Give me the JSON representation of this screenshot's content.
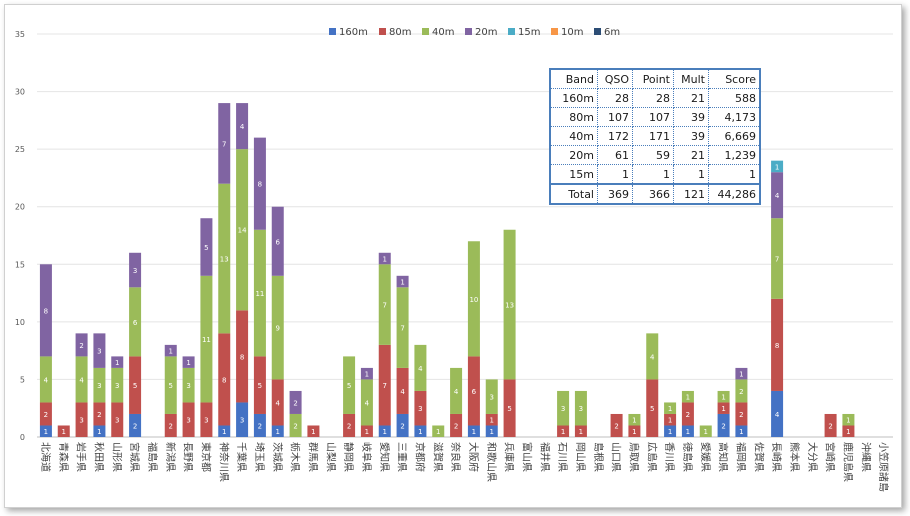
{
  "chart_data": {
    "type": "bar",
    "stacked": true,
    "ylim": [
      0,
      35
    ],
    "yticks": [
      0,
      5,
      10,
      15,
      20,
      25,
      30,
      35
    ],
    "grid": true,
    "legend_position": "top",
    "categories": [
      "北海道",
      "青森県",
      "岩手県",
      "秋田県",
      "山形県",
      "宮城県",
      "福島県",
      "新潟県",
      "長野県",
      "東京都",
      "神奈川県",
      "千葉県",
      "埼玉県",
      "茨城県",
      "栃木県",
      "群馬県",
      "山梨県",
      "静岡県",
      "岐阜県",
      "愛知県",
      "三重県",
      "京都府",
      "滋賀県",
      "奈良県",
      "大阪府",
      "和歌山県",
      "兵庫県",
      "富山県",
      "福井県",
      "石川県",
      "岡山県",
      "島根県",
      "山口県",
      "鳥取県",
      "広島県",
      "香川県",
      "徳島県",
      "愛媛県",
      "高知県",
      "福岡県",
      "佐賀県",
      "長崎県",
      "熊本県",
      "大分県",
      "宮崎県",
      "鹿児島県",
      "沖縄県",
      "小笠原諸島"
    ],
    "series": [
      {
        "name": "160m",
        "color": "#4472c4",
        "values": [
          1,
          0,
          0,
          1,
          0,
          2,
          0,
          0,
          0,
          0,
          1,
          3,
          2,
          1,
          0,
          0,
          0,
          0,
          0,
          1,
          2,
          1,
          0,
          0,
          1,
          1,
          0,
          0,
          0,
          0,
          0,
          0,
          0,
          0,
          0,
          1,
          1,
          0,
          2,
          1,
          0,
          4,
          0,
          0,
          0,
          0,
          0,
          0
        ]
      },
      {
        "name": "80m",
        "color": "#c0504d",
        "values": [
          2,
          1,
          3,
          2,
          3,
          5,
          0,
          2,
          3,
          3,
          8,
          8,
          5,
          4,
          0,
          1,
          0,
          2,
          1,
          7,
          4,
          3,
          0,
          2,
          6,
          1,
          5,
          0,
          0,
          1,
          1,
          0,
          2,
          1,
          5,
          1,
          2,
          0,
          1,
          2,
          0,
          8,
          0,
          0,
          2,
          1,
          0,
          0
        ]
      },
      {
        "name": "40m",
        "color": "#9bbb59",
        "values": [
          4,
          0,
          4,
          3,
          3,
          6,
          0,
          5,
          3,
          11,
          13,
          14,
          11,
          9,
          2,
          0,
          0,
          5,
          4,
          7,
          7,
          4,
          1,
          4,
          10,
          3,
          13,
          0,
          0,
          3,
          3,
          0,
          0,
          1,
          4,
          1,
          1,
          1,
          1,
          2,
          0,
          7,
          0,
          0,
          0,
          1,
          0,
          0
        ]
      },
      {
        "name": "20m",
        "color": "#8064a2",
        "values": [
          8,
          0,
          2,
          3,
          1,
          3,
          0,
          1,
          1,
          5,
          7,
          4,
          8,
          6,
          2,
          0,
          0,
          0,
          1,
          1,
          1,
          0,
          0,
          0,
          0,
          0,
          0,
          0,
          0,
          0,
          0,
          0,
          0,
          0,
          0,
          0,
          0,
          0,
          0,
          1,
          0,
          4,
          0,
          0,
          0,
          0,
          0,
          0
        ]
      },
      {
        "name": "15m",
        "color": "#4bacc6",
        "values": [
          0,
          0,
          0,
          0,
          0,
          0,
          0,
          0,
          0,
          0,
          0,
          0,
          0,
          0,
          0,
          0,
          0,
          0,
          0,
          0,
          0,
          0,
          0,
          0,
          0,
          0,
          0,
          0,
          0,
          0,
          0,
          0,
          0,
          0,
          0,
          0,
          0,
          0,
          0,
          0,
          0,
          1,
          0,
          0,
          0,
          0,
          0,
          0
        ]
      },
      {
        "name": "10m",
        "color": "#f79646",
        "values": [
          0,
          0,
          0,
          0,
          0,
          0,
          0,
          0,
          0,
          0,
          0,
          0,
          0,
          0,
          0,
          0,
          0,
          0,
          0,
          0,
          0,
          0,
          0,
          0,
          0,
          0,
          0,
          0,
          0,
          0,
          0,
          0,
          0,
          0,
          0,
          0,
          0,
          0,
          0,
          0,
          0,
          0,
          0,
          0,
          0,
          0,
          0,
          0
        ]
      },
      {
        "name": "6m",
        "color": "#2c4d75",
        "values": [
          0,
          0,
          0,
          0,
          0,
          0,
          0,
          0,
          0,
          0,
          0,
          0,
          0,
          0,
          0,
          0,
          0,
          0,
          0,
          0,
          0,
          0,
          0,
          0,
          0,
          0,
          0,
          0,
          0,
          0,
          0,
          0,
          0,
          0,
          0,
          0,
          0,
          0,
          0,
          0,
          0,
          0,
          0,
          0,
          0,
          0,
          0,
          0
        ]
      }
    ]
  },
  "score_table": {
    "headers": [
      "Band",
      "QSO",
      "Point",
      "Mult",
      "Score"
    ],
    "rows": [
      [
        "160m",
        "28",
        "28",
        "21",
        "588"
      ],
      [
        "80m",
        "107",
        "107",
        "39",
        "4,173"
      ],
      [
        "40m",
        "172",
        "171",
        "39",
        "6,669"
      ],
      [
        "20m",
        "61",
        "59",
        "21",
        "1,239"
      ],
      [
        "15m",
        "1",
        "1",
        "1",
        "1"
      ]
    ],
    "total": [
      "Total",
      "369",
      "366",
      "121",
      "44,286"
    ]
  }
}
